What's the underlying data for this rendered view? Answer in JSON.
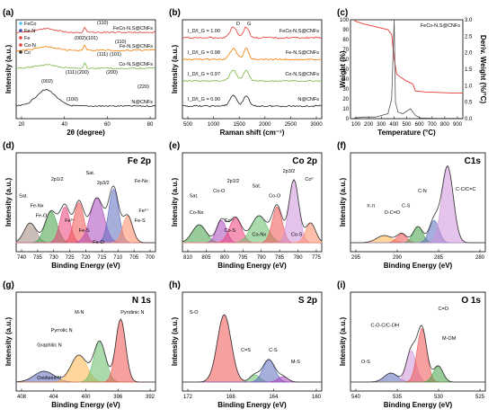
{
  "chart_data": [
    {
      "panel": "(a)",
      "type": "line",
      "xlabel": "2θ (degree)",
      "ylabel": "Intensity (a.u.)",
      "xlim": [
        10,
        80
      ],
      "xticks": [
        "20",
        "40",
        "60",
        "80"
      ],
      "legend": [
        {
          "label": "FeCo",
          "marker": "square",
          "color": "#4fc3f7"
        },
        {
          "label": "Fe-N",
          "marker": "dot",
          "color": "#3949ab"
        },
        {
          "label": "Fe",
          "marker": "star",
          "color": "#e53935"
        },
        {
          "label": "Co-N",
          "marker": "dot",
          "color": "#e53935"
        },
        {
          "label": "Co",
          "marker": "star",
          "color": "#333333"
        }
      ],
      "series": [
        {
          "name": "FeCo-N,S@CNFs",
          "color": "#e53935"
        },
        {
          "name": "Fe-N,S@CNFs",
          "color": "#f57c00"
        },
        {
          "name": "Co-N,S@CNFs",
          "color": "#7cb342"
        },
        {
          "name": "N@CNFs",
          "color": "#222222"
        }
      ],
      "annotations": [
        "(110)",
        "(002)",
        "(101)",
        "(110)",
        "(101)",
        "(111)",
        "(111)",
        "(200)",
        "(200)",
        "(220)",
        "(002)",
        "(100)"
      ]
    },
    {
      "panel": "(b)",
      "type": "line",
      "xlabel": "Raman shift (cm⁻¹)",
      "ylabel": "Intensity (a.u.)",
      "xlim": [
        400,
        3000
      ],
      "xticks": [
        "500",
        "1000",
        "1500",
        "2000",
        "2500",
        "3000"
      ],
      "peaks": [
        "D",
        "G"
      ],
      "series": [
        {
          "name": "FeCo-N,S@CNFs",
          "ratio": "I_D/I_G = 1.00",
          "color": "#e53935"
        },
        {
          "name": "Fe-N,S@CNFs",
          "ratio": "I_D/I_G = 0.98",
          "color": "#f57c00"
        },
        {
          "name": "Co-N,S@CNFs",
          "ratio": "I_D/I_G = 0.97",
          "color": "#7cb342"
        },
        {
          "name": "N@CNFs",
          "ratio": "I_D/I_G = 0.90",
          "color": "#222222"
        }
      ]
    },
    {
      "panel": "(c)",
      "type": "line",
      "xlabel": "Temperature (°C)",
      "ylabel": "Weight (%)",
      "y2label": "Deriv. Weight (%/°C)",
      "xlim": [
        0,
        900
      ],
      "ylim": [
        0,
        100
      ],
      "y2lim": [
        0,
        3.0
      ],
      "xticks": [
        "100",
        "200",
        "300",
        "400",
        "500",
        "600",
        "700",
        "800",
        "900"
      ],
      "yticks": [
        "0",
        "10",
        "20",
        "30",
        "40",
        "50",
        "60",
        "70",
        "80",
        "90",
        "100"
      ],
      "y2ticks": [
        "0.0",
        "0.5",
        "1.0",
        "1.5",
        "2.0",
        "2.5",
        "3.0"
      ],
      "label": "FeCo-N,S@CNFs",
      "weight": {
        "x": [
          30,
          100,
          200,
          300,
          330,
          350,
          370,
          400,
          450,
          500,
          520,
          600,
          700,
          800,
          900
        ],
        "y": [
          99,
          96,
          93,
          90,
          85,
          60,
          45,
          42,
          38,
          35,
          28,
          27,
          26.5,
          26,
          26
        ]
      },
      "deriv": {
        "x": [
          30,
          100,
          200,
          300,
          330,
          350,
          360,
          380,
          420,
          480,
          520,
          560,
          700,
          900
        ],
        "y": [
          0.02,
          0.05,
          0.05,
          0.15,
          0.6,
          3.0,
          0.5,
          0.2,
          0.15,
          0.3,
          0.1,
          0.02,
          0.01,
          0.01
        ]
      }
    },
    {
      "panel": "(d)",
      "type": "area",
      "title": "Fe 2p",
      "xlabel": "Binding Energy (eV)",
      "ylabel": "Intensity (a.u.)",
      "xlim": [
        740,
        700
      ],
      "xticks": [
        "740",
        "735",
        "730",
        "725",
        "720",
        "715",
        "710",
        "705",
        "700"
      ],
      "labels": [
        "Sat.",
        "Sat.",
        "2p1/2",
        "2p3/2",
        "Fe-Nx",
        "Fe-Nx",
        "Fe-O",
        "Fe³⁺",
        "Fe-S",
        "Fe-O",
        "Fe²⁺",
        "Fe-S"
      ]
    },
    {
      "panel": "(e)",
      "type": "area",
      "title": "Co 2p",
      "xlabel": "Binding Energy (eV)",
      "ylabel": "Intensity (a.u.)",
      "xlim": [
        810,
        775
      ],
      "xticks": [
        "810",
        "805",
        "800",
        "795",
        "790",
        "785",
        "780",
        "775"
      ],
      "labels": [
        "Sat.",
        "Co-O",
        "2p1/2",
        "Sat.",
        "2p3/2",
        "Co-O",
        "Co⁰",
        "Co-Nx",
        "Co²⁺",
        "Co-S",
        "Co-Nx",
        "Co-S"
      ]
    },
    {
      "panel": "(f)",
      "type": "area",
      "title": "C1s",
      "xlabel": "Binding Energy (eV)",
      "ylabel": "Intensity (a.u.)",
      "xlim": [
        295,
        280
      ],
      "xticks": [
        "295",
        "290",
        "285",
        "280"
      ],
      "labels": [
        "π-π",
        "O-C=O",
        "C-S",
        "C-N",
        "C-C/C=C"
      ]
    },
    {
      "panel": "(g)",
      "type": "area",
      "title": "N 1s",
      "xlabel": "Binding Energy (eV)",
      "ylabel": "Intensity (a.u.)",
      "xlim": [
        410,
        392
      ],
      "xticks": [
        "408",
        "404",
        "400",
        "396",
        "392"
      ],
      "labels": [
        "M-N",
        "Pyridinic N",
        "Pyrrolic N",
        "Graphitic N",
        "Oxidized N"
      ]
    },
    {
      "panel": "(h)",
      "type": "area",
      "title": "S 2p",
      "xlabel": "Binding Energy (eV)",
      "ylabel": "Intensity (a.u.)",
      "xlim": [
        174,
        158
      ],
      "xticks": [
        "172",
        "168",
        "164",
        "160"
      ],
      "labels": [
        "S-O",
        "C=S",
        "C-S",
        "M-S"
      ]
    },
    {
      "panel": "(i)",
      "type": "area",
      "title": "O 1s",
      "xlabel": "Binding Energy (eV)",
      "ylabel": "Intensity (a.u.)",
      "xlim": [
        540,
        525
      ],
      "xticks": [
        "540",
        "535",
        "530",
        "525"
      ],
      "labels": [
        "C=O",
        "C-O-C/C-OH",
        "O-S",
        "M-OM"
      ]
    }
  ]
}
